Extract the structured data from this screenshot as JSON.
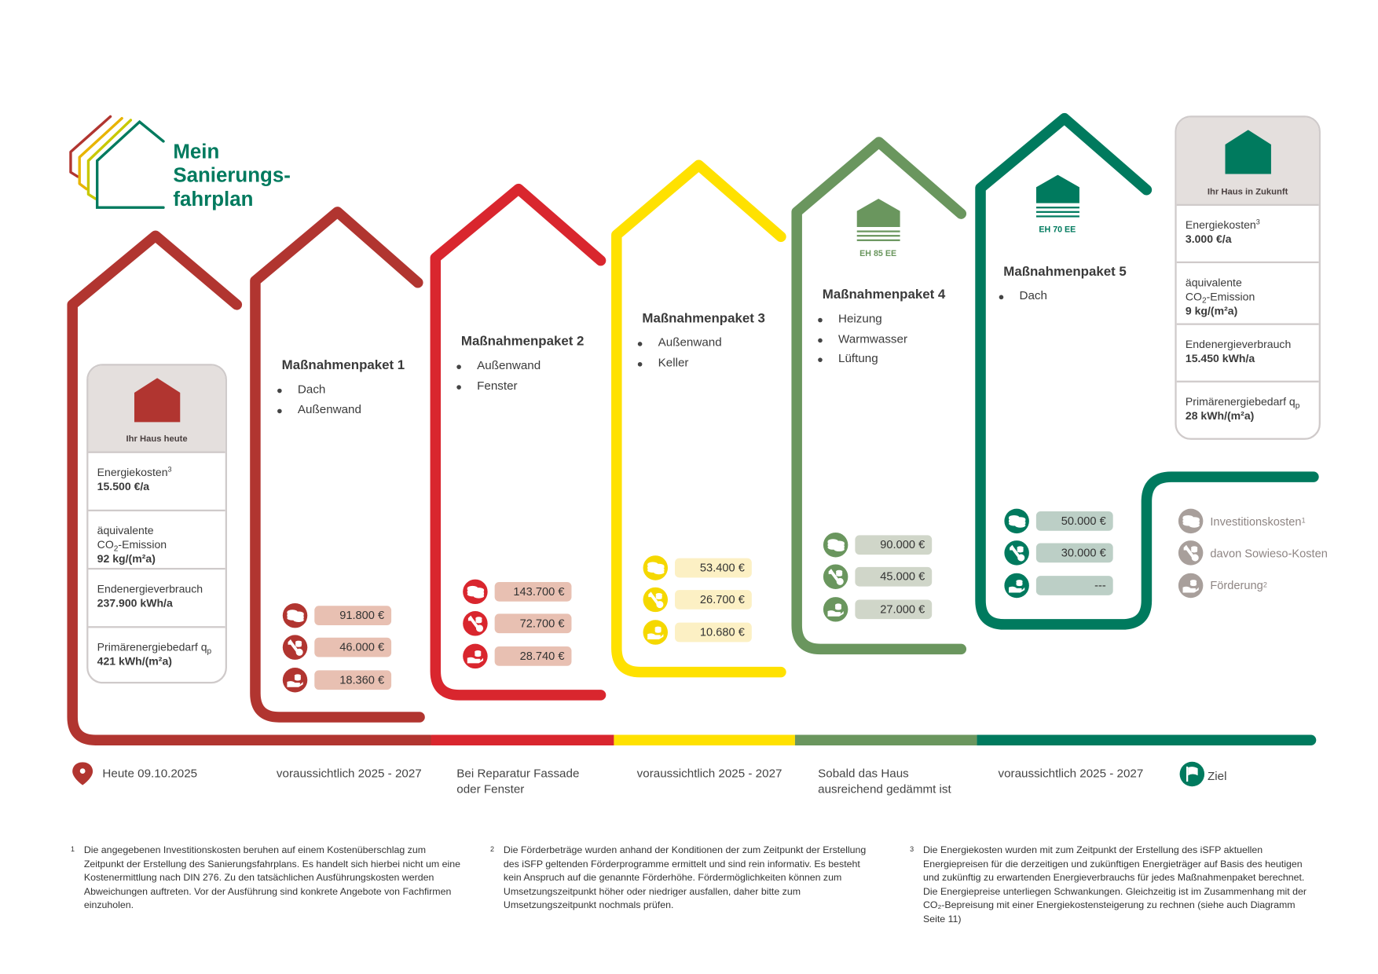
{
  "logo": {
    "title_lines": [
      "Mein",
      "Sanierungs-",
      "fahrplan"
    ]
  },
  "colors": {
    "dark_red": "#b13530",
    "red": "#d9262e",
    "yellow": "#ffe100",
    "light_green": "#6a965e",
    "dark_green": "#007a5e",
    "grey": "#a89f9b",
    "box_header": "#e4dfdd"
  },
  "today": {
    "label": "Ihr Haus heute",
    "rows": [
      {
        "pre": "",
        "label": "Energiekosten",
        "sup": "3",
        "sub": "",
        "after": "",
        "value": "15.500 €/a"
      },
      {
        "pre": "äquivalente",
        "label": "CO",
        "sup": "",
        "sub": "2",
        "after": "-Emission",
        "value": "92 kg/(m²a)"
      },
      {
        "pre": "",
        "label": "Endenergieverbrauch",
        "sup": "",
        "sub": "",
        "after": "",
        "value": "237.900 kWh/a"
      },
      {
        "pre": "",
        "label": "Primärenergiebedarf q",
        "sup": "",
        "sub": "p",
        "after": "",
        "value": "421 kWh/(m²a)"
      }
    ]
  },
  "future": {
    "label": "Ihr Haus in Zukunft",
    "rows": [
      {
        "pre": "",
        "label": "Energiekosten",
        "sup": "3",
        "sub": "",
        "after": "",
        "value": "3.000 €/a"
      },
      {
        "pre": "äquivalente",
        "label": "CO",
        "sup": "",
        "sub": "2",
        "after": "-Emission",
        "value": "9 kg/(m²a)"
      },
      {
        "pre": "",
        "label": "Endenergieverbrauch",
        "sup": "",
        "sub": "",
        "after": "",
        "value": "15.450 kWh/a"
      },
      {
        "pre": "",
        "label": "Primärenergiebedarf q",
        "sup": "",
        "sub": "p",
        "after": "",
        "value": "28 kWh/(m²a)"
      }
    ]
  },
  "packages": [
    {
      "title": "Maßnahmenpaket 1",
      "items": [
        "Dach",
        "Außenwand"
      ],
      "badge": "",
      "color": "#b13530",
      "pill_color": "#e8c0b2",
      "costs": [
        "91.800 €",
        "46.000 €",
        "18.360 €"
      ],
      "timing": "voraussichtlich 2025 - 2027"
    },
    {
      "title": "Maßnahmenpaket 2",
      "items": [
        "Außenwand",
        "Fenster"
      ],
      "badge": "",
      "color": "#d9262e",
      "pill_color": "#e8c0b2",
      "costs": [
        "143.700 €",
        "72.700 €",
        "28.740 €"
      ],
      "timing": "Bei Reparatur Fassade\noder Fenster"
    },
    {
      "title": "Maßnahmenpaket 3",
      "items": [
        "Außenwand",
        "Keller"
      ],
      "badge": "",
      "color": "#f5d800",
      "pill_color": "#fcf0c4",
      "costs": [
        "53.400 €",
        "26.700 €",
        "10.680 €"
      ],
      "timing": "voraussichtlich 2025 - 2027"
    },
    {
      "title": "Maßnahmenpaket 4",
      "items": [
        "Heizung",
        "Warmwasser",
        "Lüftung"
      ],
      "badge": "EH 85 EE",
      "color": "#6a965e",
      "pill_color": "#d0d6c9",
      "costs": [
        "90.000 €",
        "45.000 €",
        "27.000 €"
      ],
      "timing": "Sobald das Haus\nausreichend gedämmt ist"
    },
    {
      "title": "Maßnahmenpaket 5",
      "items": [
        "Dach"
      ],
      "badge": "EH 70 EE",
      "color": "#007a5e",
      "pill_color": "#bccfc6",
      "costs": [
        "50.000 €",
        "30.000 €",
        "---"
      ],
      "timing": "voraussichtlich 2025 - 2027"
    }
  ],
  "cost_icons": [
    "coins-icon",
    "wrench-coins-icon",
    "hand-coins-icon"
  ],
  "legend": [
    {
      "label": "Investitionskosten",
      "sup": "1"
    },
    {
      "label": "davon Sowieso-Kosten",
      "sup": ""
    },
    {
      "label": "Förderung",
      "sup": "2"
    }
  ],
  "timeline": {
    "start": "Heute 09.10.2025",
    "goal": "Ziel"
  },
  "footnotes": [
    {
      "num": "1",
      "text": "Die angegebenen Investitionskosten beruhen auf einem Kostenüberschlag zum Zeitpunkt der Erstellung des Sanierungsfahrplans. Es handelt sich hierbei nicht um eine Kostenermittlung nach DIN 276. Zu den tatsächlichen Ausführungskosten werden Abweichungen auftreten. Vor der Ausführung sind konkrete Angebote von Fachfirmen einzuholen."
    },
    {
      "num": "2",
      "text": "Die Förderbeträge wurden anhand der Konditionen der zum Zeitpunkt der Erstellung des iSFP geltenden Förderprogramme ermittelt und sind rein informativ. Es besteht kein Anspruch auf die genannte Förderhöhe. Fördermöglichkeiten können zum Umsetzungszeitpunkt höher oder niedriger ausfallen, daher bitte zum Umsetzungszeitpunkt nochmals prüfen."
    },
    {
      "num": "3",
      "text": "Die Energiekosten wurden mit zum Zeitpunkt der Erstellung des iSFP aktuellen Energiepreisen für die derzeitigen und zukünftigen Energieträger auf Basis des heutigen und zukünftig zu erwartenden Energieverbrauchs für jedes Maßnahmenpaket berechnet. Die Energiepreise unterliegen Schwankungen. Gleichzeitig ist im Zusammenhang mit der CO₂-Bepreisung mit einer Energiekostensteigerung zu rechnen (siehe auch Diagramm Seite 11)"
    }
  ]
}
